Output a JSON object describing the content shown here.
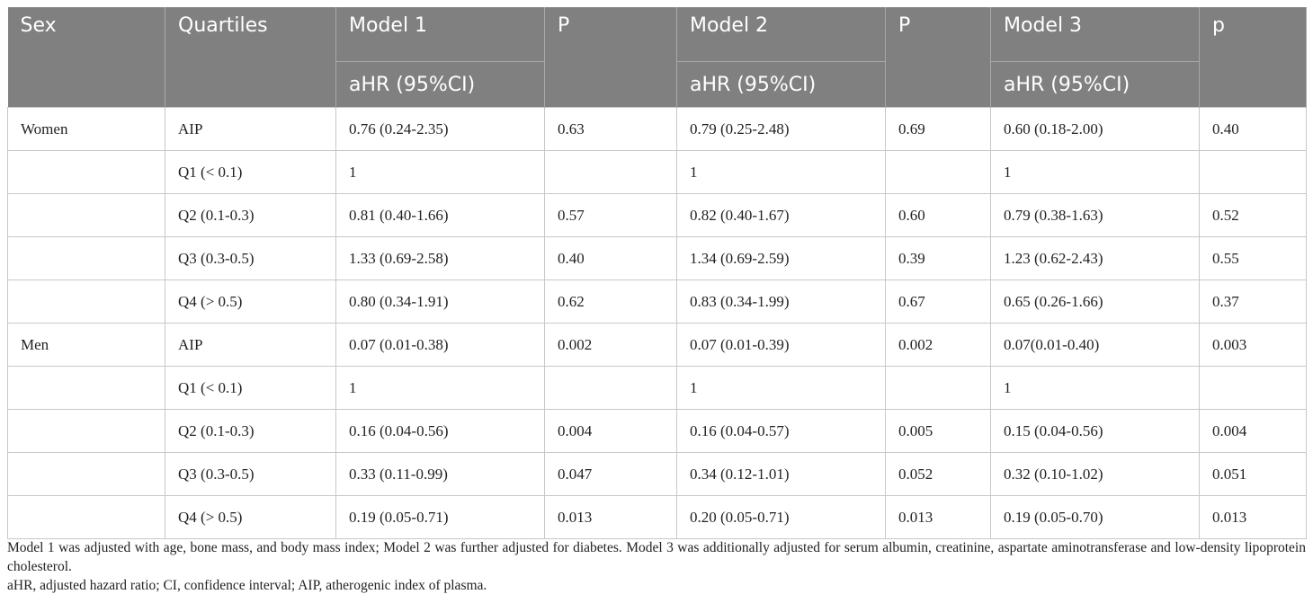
{
  "table": {
    "header": {
      "columns": [
        "Sex",
        "Quartiles",
        "Model 1",
        "P",
        "Model 2",
        "P",
        "Model 3",
        "p"
      ],
      "subheaders": [
        "aHR (95%CI)",
        "aHR (95%CI)",
        "aHR (95%CI)"
      ]
    },
    "rows": [
      [
        "Women",
        "AIP",
        "0.76 (0.24-2.35)",
        "0.63",
        "0.79 (0.25-2.48)",
        "0.69",
        "0.60 (0.18-2.00)",
        "0.40"
      ],
      [
        null,
        "Q1 (< 0.1)",
        "1",
        null,
        "1",
        null,
        "1",
        null
      ],
      [
        null,
        "Q2 (0.1-0.3)",
        "0.81 (0.40-1.66)",
        "0.57",
        "0.82 (0.40-1.67)",
        "0.60",
        "0.79 (0.38-1.63)",
        "0.52"
      ],
      [
        null,
        "Q3 (0.3-0.5)",
        "1.33 (0.69-2.58)",
        "0.40",
        "1.34 (0.69-2.59)",
        "0.39",
        "1.23 (0.62-2.43)",
        "0.55"
      ],
      [
        null,
        "Q4 (> 0.5)",
        "0.80 (0.34-1.91)",
        "0.62",
        "0.83 (0.34-1.99)",
        "0.67",
        "0.65 (0.26-1.66)",
        "0.37"
      ],
      [
        "Men",
        "AIP",
        "0.07 (0.01-0.38)",
        "0.002",
        "0.07 (0.01-0.39)",
        "0.002",
        "0.07(0.01-0.40)",
        "0.003"
      ],
      [
        null,
        "Q1 (< 0.1)",
        "1",
        null,
        "1",
        null,
        "1",
        null
      ],
      [
        null,
        "Q2 (0.1-0.3)",
        "0.16 (0.04-0.56)",
        "0.004",
        "0.16 (0.04-0.57)",
        "0.005",
        "0.15 (0.04-0.56)",
        "0.004"
      ],
      [
        null,
        "Q3 (0.3-0.5)",
        "0.33 (0.11-0.99)",
        "0.047",
        "0.34 (0.12-1.01)",
        "0.052",
        "0.32 (0.10-1.02)",
        "0.051"
      ],
      [
        null,
        "Q4 (> 0.5)",
        "0.19 (0.05-0.71)",
        "0.013",
        "0.20 (0.05-0.71)",
        "0.013",
        "0.19 (0.05-0.70)",
        "0.013"
      ]
    ]
  },
  "notes": [
    "Model 1 was adjusted with age, bone mass, and body mass index; Model 2 was further adjusted for diabetes. Model 3 was additionally adjusted for serum albumin, creatinine, aspartate aminotransferase and low-density lipoprotein cholesterol.",
    "aHR, adjusted hazard ratio; CI, confidence interval; AIP, atherogenic index of plasma."
  ]
}
